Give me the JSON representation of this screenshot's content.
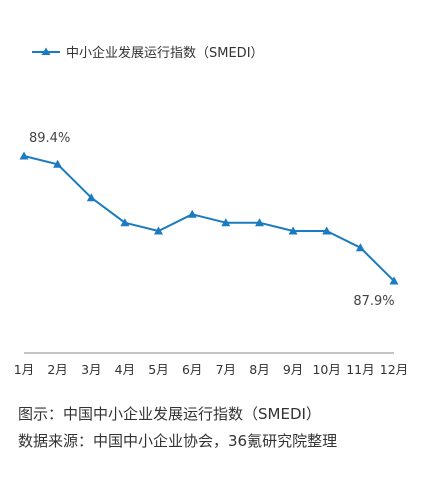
{
  "chart_data": {
    "type": "line",
    "categories": [
      "1月",
      "2月",
      "3月",
      "4月",
      "5月",
      "6月",
      "7月",
      "8月",
      "9月",
      "10月",
      "11月",
      "12月"
    ],
    "series": [
      {
        "name": "中小企业发展运行指数（SMEDI）",
        "values": [
          89.4,
          89.3,
          88.9,
          88.6,
          88.5,
          88.7,
          88.6,
          88.6,
          88.5,
          88.5,
          88.3,
          87.9
        ]
      }
    ],
    "data_labels": [
      {
        "index": 0,
        "text": "89.4%"
      },
      {
        "index": 11,
        "text": "87.9%"
      }
    ],
    "ylim": [
      87.0,
      90.0
    ],
    "grid": false,
    "legend": "top-left",
    "line_color": "#1a7bc0",
    "axis_color": "#888888"
  },
  "caption": {
    "line1": "图示：中国中小企业发展运行指数（SMEDI）",
    "line2": "数据来源：中国中小企业协会，36氪研究院整理"
  }
}
